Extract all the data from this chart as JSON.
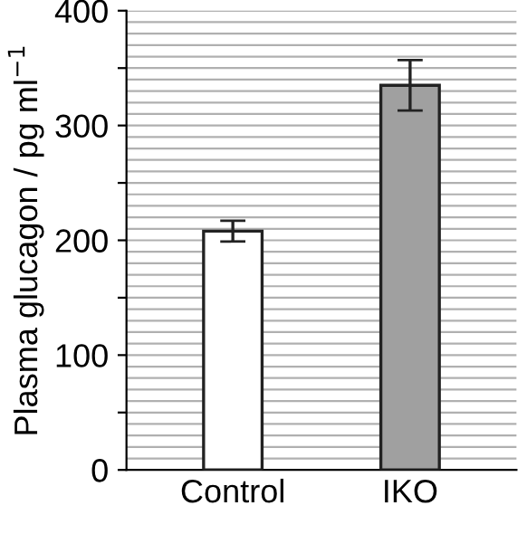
{
  "chart_data": {
    "type": "bar",
    "ylabel": "Plasma glucagon / pg ml$^{−1}$",
    "categories": [
      "Control",
      "IKO"
    ],
    "values": [
      208,
      335
    ],
    "errors": [
      9,
      22
    ],
    "colors": [
      "#ffffff",
      "#a0a0a0"
    ],
    "ylim": [
      0,
      400
    ],
    "yticks": [
      0,
      {
        "value": 50,
        "label": null
      },
      100,
      {
        "value": 150,
        "label": null
      },
      200,
      {
        "value": 250,
        "label": null
      },
      300,
      {
        "value": 350,
        "label": null
      },
      400
    ],
    "grid": "y"
  }
}
